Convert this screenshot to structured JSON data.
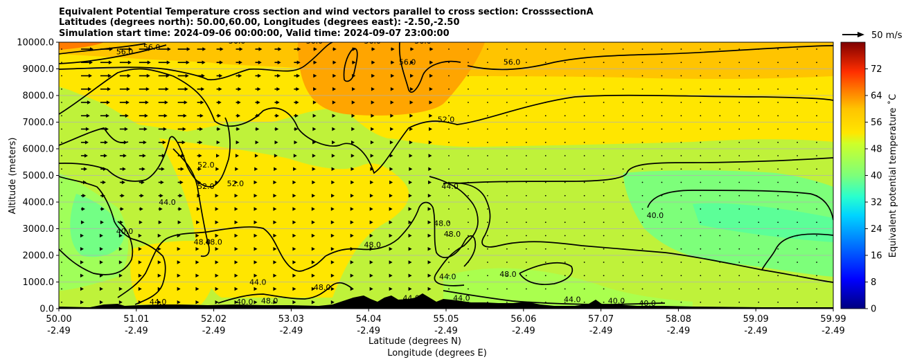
{
  "chart_data": {
    "type": "contour",
    "title_lines": [
      "Equivalent Potential Temperature cross section and wind vectors parallel to cross section: CrosssectionA",
      "Latitudes (degrees north): 50.00,60.00, Longitudes (degrees east): -2.50,-2.50",
      "Simulation start time: 2024-09-06 00:00:00, Valid time: 2024-09-07 23:00:00"
    ],
    "ylabel": "Altitude (meters)",
    "xlabel_lines": [
      "Latitude (degrees N)",
      "Longitude (degrees E)"
    ],
    "ylim": [
      0,
      10000
    ],
    "y_ticks": [
      "0.0",
      "1000.0",
      "2000.0",
      "3000.0",
      "4000.0",
      "5000.0",
      "6000.0",
      "7000.0",
      "8000.0",
      "9000.0",
      "10000.0"
    ],
    "x_ticks": [
      {
        "lat": "50.00",
        "lon": "-2.49"
      },
      {
        "lat": "51.01",
        "lon": "-2.49"
      },
      {
        "lat": "52.02",
        "lon": "-2.49"
      },
      {
        "lat": "53.03",
        "lon": "-2.49"
      },
      {
        "lat": "54.04",
        "lon": "-2.49"
      },
      {
        "lat": "55.05",
        "lon": "-2.49"
      },
      {
        "lat": "56.06",
        "lon": "-2.49"
      },
      {
        "lat": "57.07",
        "lon": "-2.49"
      },
      {
        "lat": "58.08",
        "lon": "-2.49"
      },
      {
        "lat": "59.09",
        "lon": "-2.49"
      },
      {
        "lat": "59.99",
        "lon": "-2.49"
      }
    ],
    "grid": "horizontal",
    "colorbar": {
      "label": "Equivalent potential temperature ˚C",
      "range": [
        0,
        80
      ],
      "ticks": [
        "0",
        "8",
        "16",
        "24",
        "32",
        "40",
        "48",
        "56",
        "64",
        "72"
      ]
    },
    "wind_legend": "50 m/s",
    "contour_labels": [
      {
        "text": "56.0",
        "lat_frac": 0.085,
        "alt": 9550
      },
      {
        "text": "56.0",
        "lat_frac": 0.12,
        "alt": 9720
      },
      {
        "text": "56.0",
        "lat_frac": 0.23,
        "alt": 9950
      },
      {
        "text": "56.0",
        "lat_frac": 0.33,
        "alt": 9950
      },
      {
        "text": "56.0",
        "lat_frac": 0.405,
        "alt": 9950
      },
      {
        "text": "56.0",
        "lat_frac": 0.45,
        "alt": 9150
      },
      {
        "text": "56.0",
        "lat_frac": 0.47,
        "alt": 9950
      },
      {
        "text": "56.0",
        "lat_frac": 0.585,
        "alt": 9150
      },
      {
        "text": "52.0",
        "lat_frac": 0.5,
        "alt": 7000
      },
      {
        "text": "52.0",
        "lat_frac": 0.19,
        "alt": 5300
      },
      {
        "text": "52.0",
        "lat_frac": 0.19,
        "alt": 4500
      },
      {
        "text": "52.0",
        "lat_frac": 0.228,
        "alt": 4600
      },
      {
        "text": "44.0",
        "lat_frac": 0.14,
        "alt": 3900
      },
      {
        "text": "44.0",
        "lat_frac": 0.505,
        "alt": 4500
      },
      {
        "text": "40.0",
        "lat_frac": 0.085,
        "alt": 2800
      },
      {
        "text": "40.0",
        "lat_frac": 0.77,
        "alt": 3400
      },
      {
        "text": "48.0",
        "lat_frac": 0.185,
        "alt": 2400
      },
      {
        "text": "48.0",
        "lat_frac": 0.2,
        "alt": 2400
      },
      {
        "text": "48.0",
        "lat_frac": 0.405,
        "alt": 2300
      },
      {
        "text": "48.0",
        "lat_frac": 0.495,
        "alt": 3100
      },
      {
        "text": "48.0",
        "lat_frac": 0.508,
        "alt": 2700
      },
      {
        "text": "48.0",
        "lat_frac": 0.58,
        "alt": 1200
      },
      {
        "text": "48.0",
        "lat_frac": 0.34,
        "alt": 700
      },
      {
        "text": "48.0",
        "lat_frac": 0.272,
        "alt": 200
      },
      {
        "text": "44.0",
        "lat_frac": 0.257,
        "alt": 900
      },
      {
        "text": "44.0",
        "lat_frac": 0.502,
        "alt": 1100
      },
      {
        "text": "44.0",
        "lat_frac": 0.455,
        "alt": 300
      },
      {
        "text": "44.0",
        "lat_frac": 0.52,
        "alt": 300
      },
      {
        "text": "44.0",
        "lat_frac": 0.663,
        "alt": 250
      },
      {
        "text": "44.0",
        "lat_frac": 0.128,
        "alt": 150
      },
      {
        "text": "40.0",
        "lat_frac": 0.72,
        "alt": 200
      },
      {
        "text": "40.0",
        "lat_frac": 0.76,
        "alt": 100
      },
      {
        "text": "40.0",
        "lat_frac": 0.24,
        "alt": 150
      }
    ]
  }
}
